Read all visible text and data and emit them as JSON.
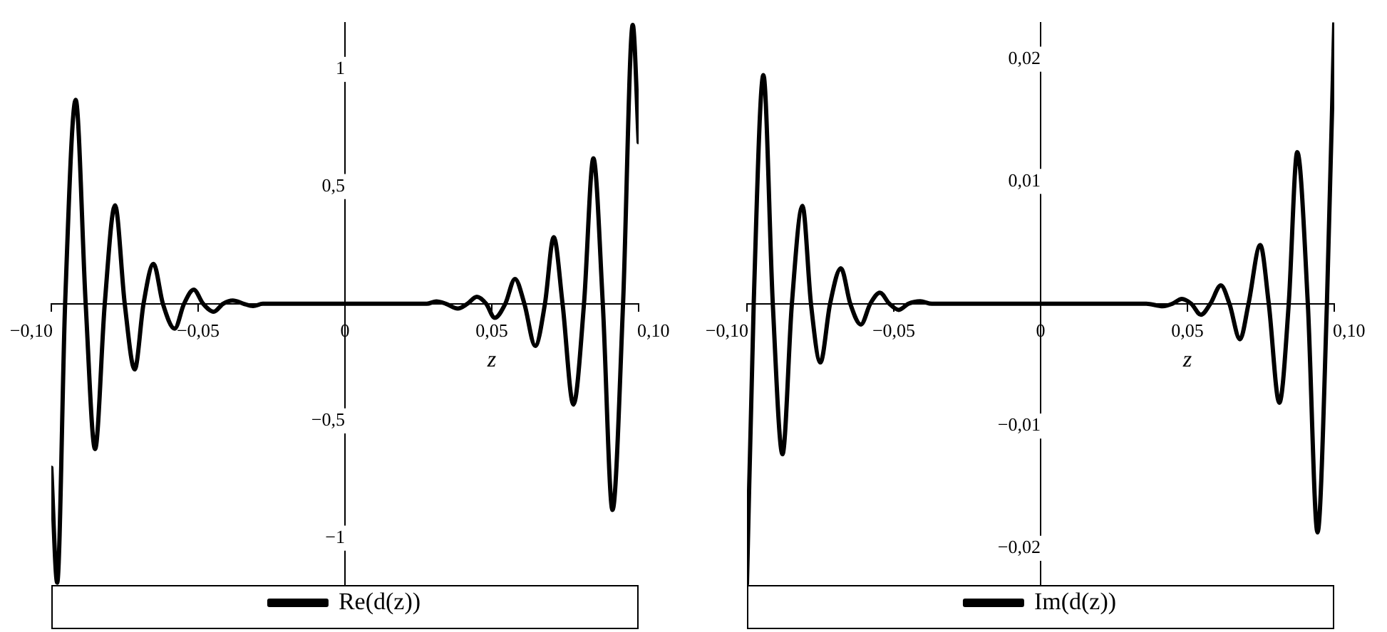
{
  "chart_data": [
    {
      "type": "line",
      "xlabel": "z",
      "xlim": [
        -0.1,
        0.1
      ],
      "ylim": [
        -1.2,
        1.2
      ],
      "xticks": [
        {
          "value": -0.1,
          "label": "−0,10"
        },
        {
          "value": -0.05,
          "label": "−0,05"
        },
        {
          "value": 0,
          "label": "0"
        },
        {
          "value": 0.05,
          "label": "0,05"
        },
        {
          "value": 0.1,
          "label": "0,10"
        }
      ],
      "yticks": [
        {
          "value": -1,
          "label": "−1"
        },
        {
          "value": -0.5,
          "label": "−0,5"
        },
        {
          "value": 0.5,
          "label": "0,5"
        },
        1
      ],
      "grid": false,
      "legend": "bottom",
      "marker": "none",
      "line_style": "solid",
      "x": [
        -0.1,
        -0.098,
        -0.0953,
        -0.0917,
        -0.0883,
        -0.0851,
        -0.0818,
        -0.0783,
        -0.075,
        -0.0716,
        -0.0686,
        -0.0652,
        -0.062,
        -0.058,
        -0.0548,
        -0.0515,
        -0.0483,
        -0.0447,
        -0.0415,
        -0.0382,
        -0.0345,
        -0.0313,
        -0.028,
        0,
        0.025,
        0.0279,
        0.0311,
        0.0344,
        0.0384,
        0.0417,
        0.0449,
        0.0481,
        0.051,
        0.0546,
        0.0579,
        0.0611,
        0.0648,
        0.0681,
        0.0711,
        0.0741,
        0.0778,
        0.0814,
        0.0846,
        0.0878,
        0.0911,
        0.0947,
        0.098,
        0.1
      ],
      "series": [
        {
          "name": "Re(d(z))",
          "color": "#000000",
          "values": [
            -0.7,
            -1.19,
            0,
            0.87,
            0,
            -0.62,
            0,
            0.42,
            0,
            -0.28,
            0,
            0.17,
            0,
            -0.106,
            0,
            0.06,
            0,
            -0.034,
            0,
            0.014,
            0,
            -0.01,
            0,
            0,
            0,
            0,
            0.01,
            0,
            -0.02,
            0,
            0.03,
            0,
            -0.06,
            0,
            0.106,
            0,
            -0.18,
            0,
            0.284,
            0,
            -0.43,
            0,
            0.62,
            0,
            -0.88,
            0,
            1.19,
            0.69
          ]
        }
      ]
    },
    {
      "type": "line",
      "xlabel": "z",
      "xlim": [
        -0.1,
        0.1
      ],
      "ylim": [
        -0.023,
        0.023
      ],
      "xticks": [
        {
          "value": -0.1,
          "label": "−0,10"
        },
        {
          "value": -0.05,
          "label": "−0,05"
        },
        {
          "value": 0,
          "label": "0"
        },
        {
          "value": 0.05,
          "label": "0,05"
        },
        {
          "value": 0.1,
          "label": "0,10"
        }
      ],
      "yticks": [
        {
          "value": -0.02,
          "label": "−0,02"
        },
        {
          "value": -0.01,
          "label": "−0,01"
        },
        {
          "value": 0.01,
          "label": "0,01"
        },
        {
          "value": 0.02,
          "label": "0,02"
        }
      ],
      "grid": false,
      "legend": "bottom",
      "marker": "none",
      "line_style": "solid",
      "x": [
        -0.1,
        -0.0977,
        -0.0944,
        -0.0912,
        -0.0879,
        -0.0847,
        -0.0811,
        -0.0782,
        -0.075,
        -0.0717,
        -0.068,
        -0.0648,
        -0.0612,
        -0.058,
        -0.0547,
        -0.0515,
        -0.0483,
        -0.045,
        -0.041,
        -0.037,
        0,
        0.036,
        0.0416,
        0.0449,
        0.0481,
        0.0513,
        0.0546,
        0.0578,
        0.0614,
        0.0643,
        0.0679,
        0.0708,
        0.0748,
        0.0777,
        0.0813,
        0.0845,
        0.0874,
        0.091,
        0.0943,
        0.0975,
        0.1
      ],
      "series": [
        {
          "name": "Im(d(z))",
          "color": "#000000",
          "values": [
            -0.0229,
            0,
            0.0187,
            0,
            -0.0123,
            0,
            0.008,
            0,
            -0.0048,
            0,
            0.0029,
            0,
            -0.0017,
            0,
            0.0009,
            0,
            -0.0005,
            0,
            0.0002,
            0,
            0,
            0,
            -0.0002,
            0,
            0.0004,
            0,
            -0.0009,
            0,
            0.0015,
            0,
            -0.0029,
            0,
            0.0048,
            0,
            -0.0081,
            0,
            0.0124,
            0,
            -0.0187,
            0,
            0.023
          ]
        }
      ]
    }
  ]
}
